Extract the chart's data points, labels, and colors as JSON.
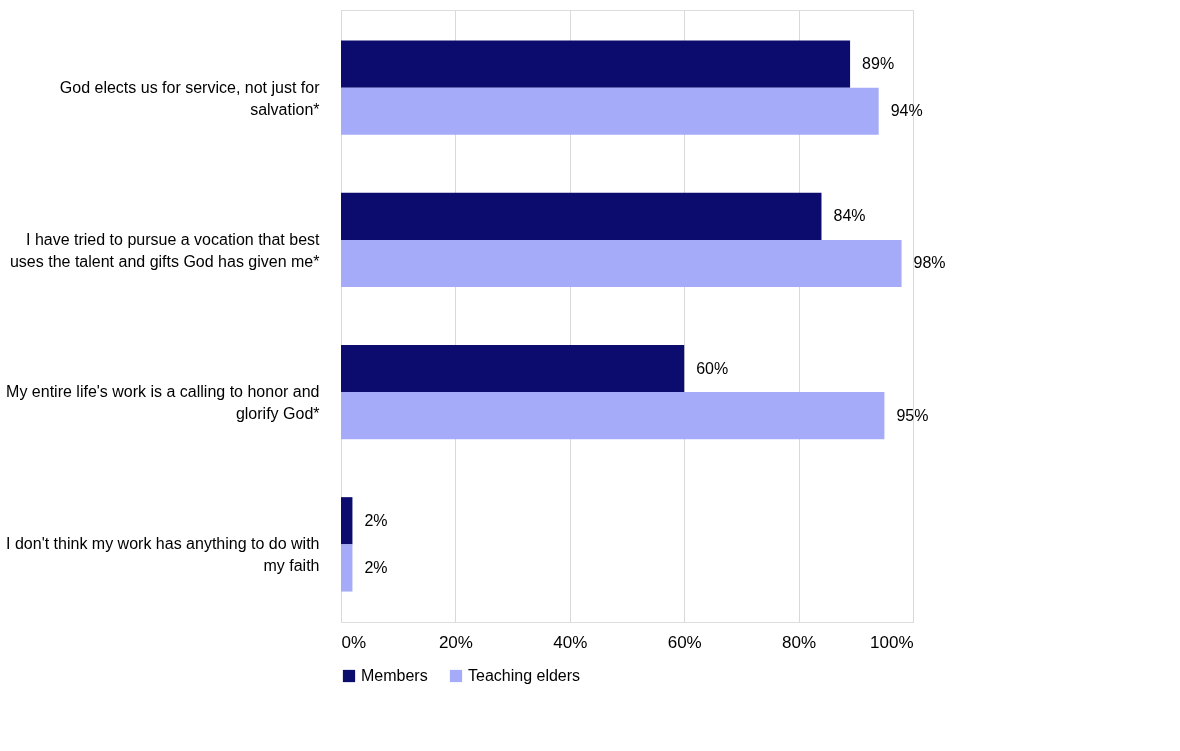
{
  "chart_data": {
    "type": "bar",
    "orientation": "horizontal",
    "categories": [
      "God elects us for service, not just for salvation*",
      "I have tried to pursue a vocation that best uses the talent and gifts God has given me*",
      "My entire life's work is a calling to honor and glorify God*",
      "I don't think my work has anything to do with my faith"
    ],
    "series": [
      {
        "name": "Members",
        "color": "#0c0c6e",
        "values": [
          89,
          84,
          60,
          2
        ],
        "value_labels": [
          "89%",
          "84%",
          "60%",
          "2%"
        ]
      },
      {
        "name": "Teaching elders",
        "color": "#a6abf9",
        "values": [
          94,
          98,
          95,
          2
        ],
        "value_labels": [
          "94%",
          "98%",
          "95%",
          "2%"
        ]
      }
    ],
    "xlim": [
      0,
      100
    ],
    "xticks": [
      {
        "value": 0,
        "label": "0%"
      },
      {
        "value": 20,
        "label": "20%"
      },
      {
        "value": 40,
        "label": "40%"
      },
      {
        "value": 60,
        "label": "60%"
      },
      {
        "value": 80,
        "label": "80%"
      },
      {
        "value": 100,
        "label": "100%"
      }
    ],
    "grid": "x",
    "legend": "bottom"
  }
}
